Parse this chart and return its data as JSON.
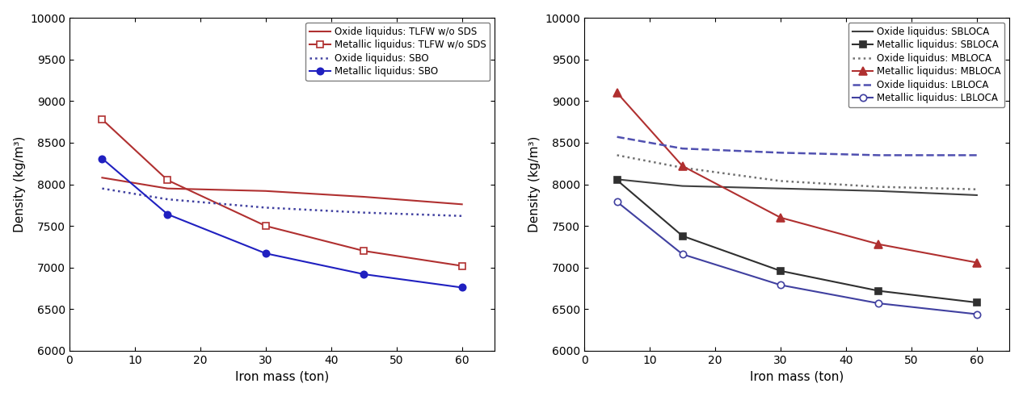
{
  "x": [
    5,
    15,
    30,
    45,
    60
  ],
  "left_chart": {
    "xlabel": "Iron mass (ton)",
    "ylabel": "Density (kg/m³)",
    "ylim": [
      6000,
      10000
    ],
    "xlim": [
      0,
      65
    ],
    "yticks": [
      6000,
      6500,
      7000,
      7500,
      8000,
      8500,
      9000,
      9500,
      10000
    ],
    "xticks": [
      0,
      10,
      20,
      30,
      40,
      50,
      60
    ],
    "series": [
      {
        "label": "Oxide liquidus: TLFW w/o SDS",
        "y": [
          8080,
          7950,
          7920,
          7850,
          7760
        ],
        "color": "#b03030",
        "linestyle": "-",
        "marker": null,
        "markersize": 6,
        "linewidth": 1.5,
        "markerfacecolor": "#b03030"
      },
      {
        "label": "Metallic liquidus: TLFW w/o SDS",
        "y": [
          8780,
          8050,
          7500,
          7200,
          7020
        ],
        "color": "#b03030",
        "linestyle": "-",
        "marker": "s",
        "markerfacecolor": "white",
        "markersize": 6,
        "linewidth": 1.5
      },
      {
        "label": "Oxide liquidus: SBO",
        "y": [
          7950,
          7820,
          7720,
          7660,
          7620
        ],
        "color": "#4040a0",
        "linestyle": ":",
        "marker": null,
        "markersize": 6,
        "linewidth": 1.8,
        "markerfacecolor": "#4040a0"
      },
      {
        "label": "Metallic liquidus: SBO",
        "y": [
          8310,
          7640,
          7170,
          6920,
          6760
        ],
        "color": "#2020c0",
        "linestyle": "-",
        "marker": "o",
        "markerfacecolor": "#2020c0",
        "markersize": 6,
        "linewidth": 1.5
      }
    ]
  },
  "right_chart": {
    "xlabel": "Iron mass (ton)",
    "ylabel": "Density (kg/m³)",
    "ylim": [
      6000,
      10000
    ],
    "xlim": [
      0,
      65
    ],
    "yticks": [
      6000,
      6500,
      7000,
      7500,
      8000,
      8500,
      9000,
      9500,
      10000
    ],
    "xticks": [
      0,
      10,
      20,
      30,
      40,
      50,
      60
    ],
    "series": [
      {
        "label": "Oxide liquidus: SBLOCA",
        "y": [
          8060,
          7980,
          7950,
          7920,
          7870
        ],
        "color": "#404040",
        "linestyle": "-",
        "marker": null,
        "markersize": 6,
        "linewidth": 1.5,
        "markerfacecolor": "#404040"
      },
      {
        "label": "Metallic liquidus: SBLOCA",
        "y": [
          8050,
          7380,
          6960,
          6720,
          6580
        ],
        "color": "#303030",
        "linestyle": "-",
        "marker": "s",
        "markerfacecolor": "#303030",
        "markersize": 6,
        "linewidth": 1.5
      },
      {
        "label": "Oxide liquidus: MBLOCA",
        "y": [
          8350,
          8200,
          8040,
          7970,
          7940
        ],
        "color": "#707070",
        "linestyle": ":",
        "marker": null,
        "markersize": 6,
        "linewidth": 1.8,
        "markerfacecolor": "#707070"
      },
      {
        "label": "Metallic liquidus: MBLOCA",
        "y": [
          9100,
          8220,
          7600,
          7280,
          7060
        ],
        "color": "#b03030",
        "linestyle": "-",
        "marker": "^",
        "markerfacecolor": "#b03030",
        "markersize": 7,
        "linewidth": 1.5
      },
      {
        "label": "Oxide liquidus: LBLOCA",
        "y": [
          8570,
          8430,
          8380,
          8350,
          8350
        ],
        "color": "#5050b0",
        "linestyle": "--",
        "marker": null,
        "markersize": 6,
        "linewidth": 1.8,
        "markerfacecolor": "#5050b0"
      },
      {
        "label": "Metallic liquidus: LBLOCA",
        "y": [
          7790,
          7160,
          6790,
          6570,
          6440
        ],
        "color": "#4040a0",
        "linestyle": "-",
        "marker": "o",
        "markerfacecolor": "white",
        "markersize": 6,
        "linewidth": 1.5
      }
    ]
  },
  "legend_fontsize": 8.5,
  "axis_fontsize": 11,
  "tick_fontsize": 10,
  "figsize": [
    12.66,
    4.91
  ],
  "dpi": 100
}
